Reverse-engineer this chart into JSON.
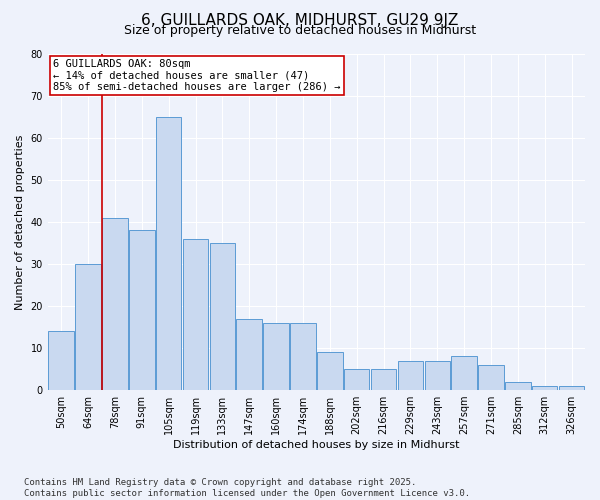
{
  "title1": "6, GUILLARDS OAK, MIDHURST, GU29 9JZ",
  "title2": "Size of property relative to detached houses in Midhurst",
  "xlabel": "Distribution of detached houses by size in Midhurst",
  "ylabel": "Number of detached properties",
  "categories": [
    "50sqm",
    "64sqm",
    "78sqm",
    "91sqm",
    "105sqm",
    "119sqm",
    "133sqm",
    "147sqm",
    "160sqm",
    "174sqm",
    "188sqm",
    "202sqm",
    "216sqm",
    "229sqm",
    "243sqm",
    "257sqm",
    "271sqm",
    "285sqm",
    "312sqm",
    "326sqm"
  ],
  "values": [
    14,
    30,
    41,
    38,
    65,
    36,
    35,
    17,
    16,
    16,
    9,
    5,
    5,
    7,
    7,
    8,
    6,
    2,
    1,
    1
  ],
  "bar_color": "#c9d9f0",
  "bar_edge_color": "#5b9bd5",
  "vline_x_idx": 2,
  "vline_color": "#cc0000",
  "annotation_text": "6 GUILLARDS OAK: 80sqm\n← 14% of detached houses are smaller (47)\n85% of semi-detached houses are larger (286) →",
  "annotation_box_color": "#ffffff",
  "annotation_box_edge": "#cc0000",
  "ylim": [
    0,
    80
  ],
  "yticks": [
    0,
    10,
    20,
    30,
    40,
    50,
    60,
    70,
    80
  ],
  "background_color": "#eef2fb",
  "footer_text": "Contains HM Land Registry data © Crown copyright and database right 2025.\nContains public sector information licensed under the Open Government Licence v3.0.",
  "title1_fontsize": 11,
  "title2_fontsize": 9,
  "xlabel_fontsize": 8,
  "ylabel_fontsize": 8,
  "tick_fontsize": 7,
  "annotation_fontsize": 7.5,
  "footer_fontsize": 6.5
}
